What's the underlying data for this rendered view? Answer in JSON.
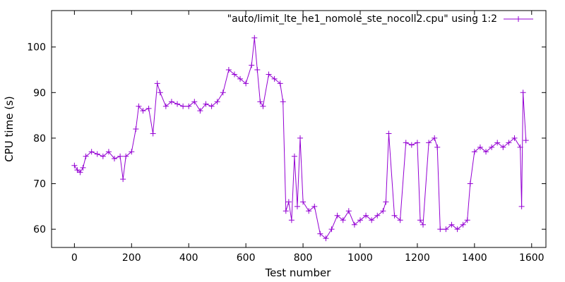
{
  "chart_data": {
    "type": "line",
    "xlabel": "Test number",
    "ylabel": "CPU time (s)",
    "xlim": [
      -80,
      1650
    ],
    "ylim": [
      56,
      108
    ],
    "xticks": [
      0,
      200,
      400,
      600,
      800,
      1000,
      1200,
      1400,
      1600
    ],
    "yticks": [
      60,
      70,
      80,
      90,
      100
    ],
    "grid": false,
    "legend_position": "top-right",
    "series": [
      {
        "name": "\"auto/limit_lte_he1_nomole_ste_nocoll2.cpu\" using 1:2",
        "color": "#9400d3",
        "marker": "plus",
        "x": [
          0,
          10,
          20,
          30,
          40,
          60,
          80,
          100,
          120,
          140,
          160,
          170,
          180,
          200,
          215,
          225,
          240,
          260,
          275,
          290,
          300,
          320,
          340,
          360,
          380,
          400,
          420,
          440,
          460,
          480,
          500,
          520,
          540,
          560,
          580,
          600,
          620,
          630,
          640,
          650,
          660,
          680,
          700,
          720,
          730,
          740,
          750,
          760,
          770,
          780,
          790,
          800,
          820,
          840,
          860,
          880,
          900,
          920,
          940,
          960,
          980,
          1000,
          1020,
          1040,
          1060,
          1080,
          1090,
          1100,
          1120,
          1140,
          1160,
          1180,
          1200,
          1210,
          1220,
          1240,
          1260,
          1270,
          1280,
          1300,
          1320,
          1340,
          1360,
          1375,
          1385,
          1400,
          1420,
          1440,
          1460,
          1480,
          1500,
          1520,
          1540,
          1560,
          1565,
          1570,
          1580
        ],
        "y": [
          74,
          73,
          72.5,
          73.5,
          76,
          77,
          76.5,
          76,
          77,
          75.5,
          76,
          71,
          76,
          77,
          82,
          87,
          86,
          86.5,
          81,
          92,
          90,
          87,
          88,
          87.5,
          87,
          87,
          88,
          86,
          87.5,
          87,
          88,
          90,
          95,
          94,
          93,
          92,
          96,
          102,
          95,
          88,
          87,
          94,
          93,
          92,
          88,
          64,
          66,
          62,
          76,
          65,
          80,
          66,
          64,
          65,
          59,
          58,
          60,
          63,
          62,
          64,
          61,
          62,
          63,
          62,
          63,
          64,
          66,
          81,
          63,
          62,
          79,
          78.5,
          79,
          62,
          61,
          79,
          80,
          78,
          60,
          60,
          61,
          60,
          61,
          62,
          70,
          77,
          78,
          77,
          78,
          79,
          78,
          79,
          80,
          78,
          65,
          90,
          79.5
        ]
      }
    ]
  }
}
